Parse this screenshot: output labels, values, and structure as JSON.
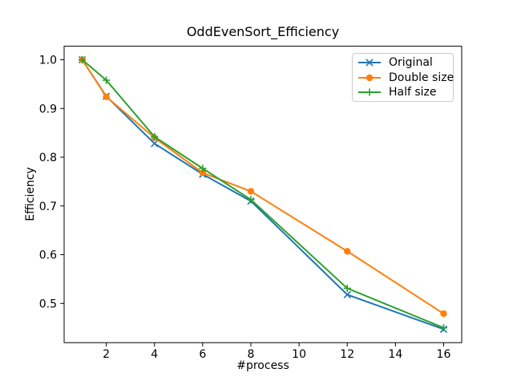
{
  "figure": {
    "background": "#ffffff",
    "axes_edge_color": "#000000",
    "legend_border_color": "#cccccc"
  },
  "chart_data": {
    "type": "line",
    "title": "OddEvenSort_Efficiency",
    "xlabel": "#process",
    "ylabel": "Efficiency",
    "x": [
      1,
      2,
      4,
      6,
      8,
      12,
      16
    ],
    "series": [
      {
        "name": "Original",
        "marker": "x",
        "color": "#1f77b4",
        "values": [
          1.0,
          0.925,
          0.828,
          0.765,
          0.71,
          0.518,
          0.447
        ]
      },
      {
        "name": "Double size",
        "marker": "circle",
        "color": "#ff7f0e",
        "values": [
          1.0,
          0.924,
          0.84,
          0.768,
          0.73,
          0.607,
          0.479
        ]
      },
      {
        "name": "Half size",
        "marker": "plus",
        "color": "#2ca02c",
        "values": [
          1.0,
          0.958,
          0.842,
          0.777,
          0.713,
          0.531,
          0.45
        ]
      }
    ],
    "xticks": [
      2,
      4,
      6,
      8,
      10,
      12,
      14,
      16
    ],
    "yticks": [
      0.5,
      0.6,
      0.7,
      0.8,
      0.9,
      1.0
    ],
    "xlim": [
      0.25,
      16.75
    ],
    "ylim": [
      0.4195,
      1.0278
    ],
    "grid": false,
    "legend_position": "upper right",
    "legend_entries": [
      "Original",
      "Double size",
      "Half size"
    ]
  }
}
